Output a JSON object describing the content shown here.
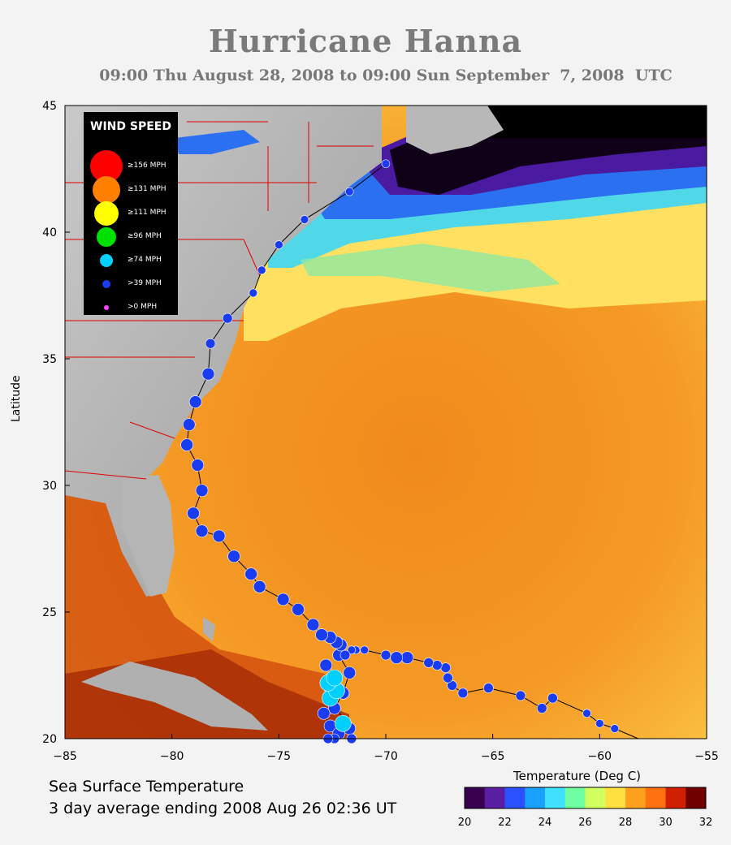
{
  "title": "Hurricane Hanna",
  "subtitle": "09:00 Thu August 28, 2008 to 09:00 Sun September  7, 2008  UTC",
  "axes": {
    "ylabel": "Latitude",
    "lon_ticks": [
      "−85",
      "−80",
      "−75",
      "−70",
      "−65",
      "−60",
      "−55"
    ],
    "lat_ticks": [
      "20",
      "25",
      "30",
      "35",
      "40",
      "45"
    ]
  },
  "legend": {
    "title": "WIND SPEED",
    "items": [
      {
        "label": "≥156 MPH",
        "color": "#ff0000"
      },
      {
        "label": "≥131 MPH",
        "color": "#ff7f00"
      },
      {
        "label": "≥111 MPH",
        "color": "#ffff00"
      },
      {
        "label": "≥96 MPH",
        "color": "#00e000"
      },
      {
        "label": "≥74 MPH",
        "color": "#00d0ff"
      },
      {
        "label": ">39 MPH",
        "color": "#1a3cf0"
      },
      {
        "label": ">0 MPH",
        "color": "#ff40ff"
      }
    ]
  },
  "sst_caption": {
    "line1": "Sea Surface Temperature",
    "line2": "3 day average ending 2008 Aug 26 02:36 UT"
  },
  "colorbar": {
    "title": "Temperature (Deg C)",
    "ticks": [
      "20",
      "22",
      "24",
      "26",
      "28",
      "30",
      "32"
    ],
    "colors": [
      "#3a0050",
      "#5a1fa0",
      "#2a50ff",
      "#1aa0ff",
      "#40e0ff",
      "#70ffa0",
      "#d0ff60",
      "#ffe040",
      "#ffa020",
      "#ff7010",
      "#d02000",
      "#700000"
    ]
  },
  "track": {
    "lon_lat": [
      [
        -59.3,
        20.4
      ],
      [
        -60.0,
        20.6
      ],
      [
        -60.6,
        21.0
      ],
      [
        -62.2,
        21.6
      ],
      [
        -62.7,
        21.2
      ],
      [
        -63.7,
        21.7
      ],
      [
        -65.2,
        22.0
      ],
      [
        -66.4,
        21.8
      ],
      [
        -66.9,
        22.1
      ],
      [
        -67.1,
        22.4
      ],
      [
        -67.2,
        22.8
      ],
      [
        -67.6,
        22.9
      ],
      [
        -68.0,
        23.0
      ],
      [
        -69.0,
        23.2
      ],
      [
        -69.5,
        23.2
      ],
      [
        -70.0,
        23.3
      ],
      [
        -71.0,
        23.5
      ],
      [
        -71.4,
        23.5
      ],
      [
        -71.6,
        23.5
      ],
      [
        -71.9,
        23.3
      ],
      [
        -72.1,
        23.7
      ],
      [
        -72.3,
        23.8
      ],
      [
        -72.6,
        24.0
      ],
      [
        -73.0,
        24.1
      ],
      [
        -73.4,
        24.5
      ],
      [
        -74.1,
        25.1
      ],
      [
        -74.8,
        25.5
      ],
      [
        -75.9,
        26.0
      ],
      [
        -76.3,
        26.5
      ],
      [
        -77.1,
        27.2
      ],
      [
        -77.8,
        28.0
      ],
      [
        -78.6,
        28.2
      ],
      [
        -79.0,
        28.9
      ],
      [
        -78.6,
        29.8
      ],
      [
        -78.8,
        30.8
      ],
      [
        -79.3,
        31.6
      ],
      [
        -79.2,
        32.4
      ],
      [
        -78.9,
        33.3
      ],
      [
        -78.3,
        34.4
      ],
      [
        -78.2,
        35.6
      ],
      [
        -77.4,
        36.6
      ],
      [
        -76.2,
        37.6
      ],
      [
        -75.8,
        38.5
      ],
      [
        -75.0,
        39.5
      ],
      [
        -73.8,
        40.5
      ],
      [
        -71.7,
        41.6
      ],
      [
        -70.0,
        42.7
      ]
    ],
    "wind_mph": [
      45,
      45,
      45,
      50,
      50,
      50,
      50,
      50,
      50,
      50,
      50,
      50,
      50,
      60,
      60,
      50,
      45,
      45,
      45,
      50,
      60,
      60,
      65,
      65,
      65,
      65,
      65,
      65,
      65,
      65,
      65,
      65,
      65,
      65,
      65,
      65,
      65,
      60,
      60,
      50,
      50,
      45,
      45,
      45,
      45,
      45,
      45
    ],
    "loop_lon_lat": [
      [
        -72.2,
        23.3
      ],
      [
        -71.7,
        22.6
      ],
      [
        -72.0,
        21.8
      ],
      [
        -72.4,
        21.2
      ],
      [
        -72.9,
        21.0
      ],
      [
        -72.6,
        20.5
      ],
      [
        -72.2,
        20.2
      ],
      [
        -71.7,
        20.4
      ],
      [
        -71.6,
        20.0
      ],
      [
        -72.4,
        20.0
      ],
      [
        -72.7,
        20.0
      ],
      [
        -72.0,
        20.6
      ],
      [
        -72.5,
        22.0
      ],
      [
        -72.6,
        21.6
      ],
      [
        -72.3,
        21.9
      ],
      [
        -72.7,
        22.2
      ],
      [
        -72.4,
        22.4
      ],
      [
        -72.8,
        22.9
      ]
    ],
    "loop_wind_mph": [
      60,
      70,
      70,
      65,
      65,
      60,
      60,
      60,
      55,
      55,
      55,
      80,
      80,
      80,
      80,
      80,
      80,
      60
    ]
  }
}
